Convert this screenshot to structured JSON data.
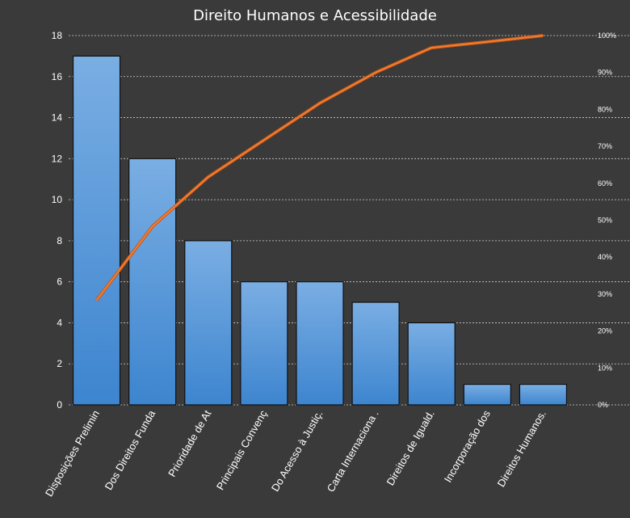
{
  "chart_data": {
    "type": "bar",
    "title": "Direito Humanos e Acessibilidade",
    "categories": [
      "Disposições Prelimin",
      "Dos Direitos Funda",
      "Prioridade de At",
      "Principais Convenç",
      "Do Acesso à Justiç.",
      "Carta Internaciona .",
      "Direitos de Iguald.",
      "Incorporação dos",
      "Direitos Humanos."
    ],
    "series": [
      {
        "type": "bar",
        "values": [
          17,
          12,
          8,
          6,
          6,
          5,
          4,
          1,
          1
        ]
      },
      {
        "type": "line",
        "axis": "secondary",
        "values": [
          28.3,
          48.3,
          61.7,
          71.7,
          81.7,
          90.0,
          96.7,
          98.3,
          100.0
        ]
      }
    ],
    "ylim": [
      0,
      18
    ],
    "yticks": [
      "0",
      "2",
      "4",
      "6",
      "8",
      "10",
      "12",
      "14",
      "16",
      "18"
    ],
    "y2lim": [
      0,
      100
    ],
    "y2ticks": [
      "0%",
      "10%",
      "20%",
      "30%",
      "40%",
      "50%",
      "60%",
      "70%",
      "80%",
      "90%",
      "100%"
    ],
    "grid": true,
    "colors": {
      "background": "#3a3a3a",
      "bar_top": "#7aaee3",
      "bar_bottom": "#3d85cf",
      "line": "#f07f30"
    }
  }
}
